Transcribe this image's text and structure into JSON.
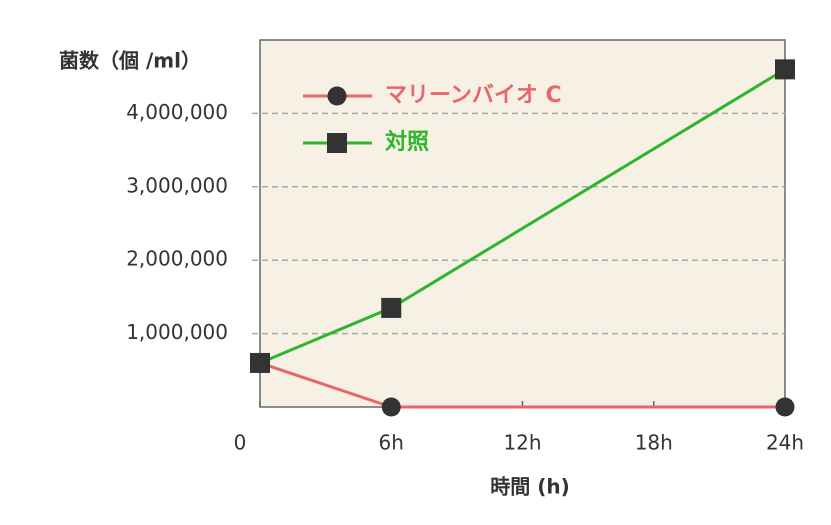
{
  "chart_data": {
    "type": "line",
    "ylabel": "菌数（個 /ml）",
    "xlabel": "時間 (h)",
    "x": [
      0,
      6,
      24
    ],
    "series": [
      {
        "name": "マリーンバイオ C",
        "color": "#e8656a",
        "marker": "circle",
        "values": [
          600000,
          0,
          0
        ]
      },
      {
        "name": "対照",
        "color": "#2db52d",
        "marker": "square",
        "values": [
          600000,
          1350000,
          4600000
        ]
      }
    ],
    "xlim": [
      0,
      24
    ],
    "xticks": [
      0,
      {
        "value": 6,
        "label": "6h"
      },
      {
        "value": 12,
        "label": "12h"
      },
      {
        "value": 18,
        "label": "18h"
      },
      {
        "value": 24,
        "label": "24h"
      }
    ],
    "ylim": [
      0,
      5000000
    ],
    "yticks": [
      {
        "value": 1000000,
        "label": "1,000,000"
      },
      {
        "value": 2000000,
        "label": "2,000,000"
      },
      {
        "value": 3000000,
        "label": "3,000,000"
      },
      {
        "value": 4000000,
        "label": "4,000,000"
      }
    ],
    "grid": true,
    "legend": "upper-left"
  }
}
